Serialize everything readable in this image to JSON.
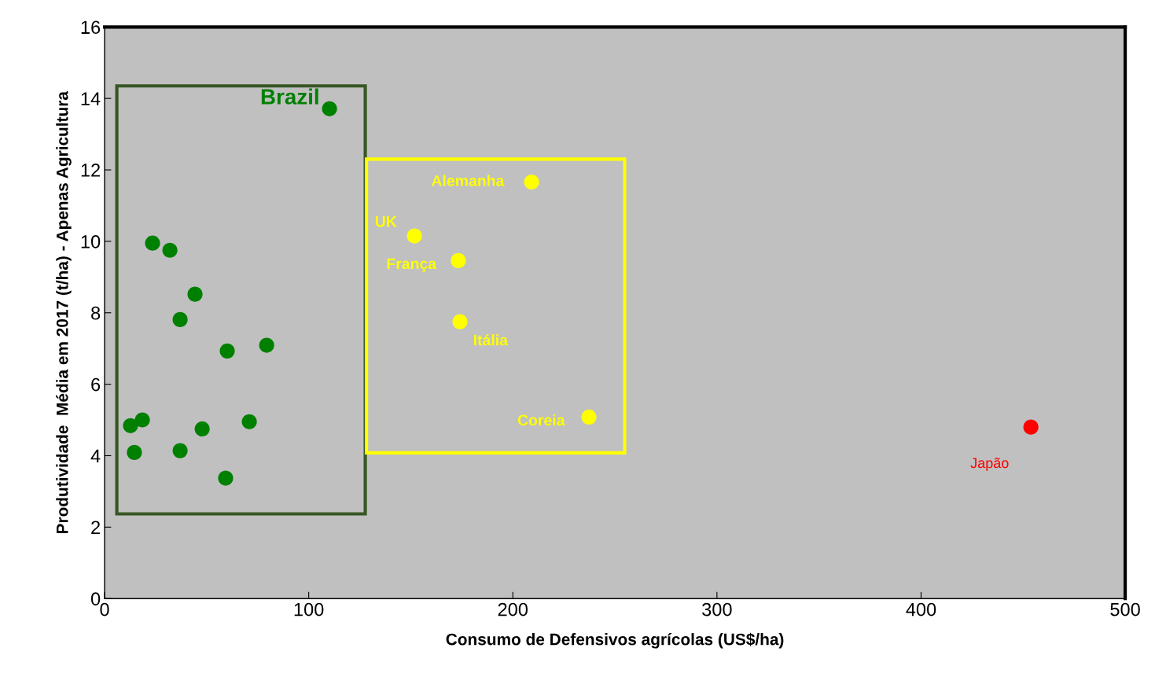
{
  "chart_data": {
    "type": "scatter",
    "xlabel": "Consumo de Defensivos agrícolas (US$/ha)",
    "ylabel": "Produtividade  Média em 2017 (t/ha) - Apenas Agricultura",
    "xlim": [
      0,
      500
    ],
    "ylim": [
      0,
      16
    ],
    "xticks": [
      0,
      100,
      200,
      300,
      400,
      500
    ],
    "yticks": [
      0,
      2,
      4,
      6,
      8,
      10,
      12,
      14,
      16
    ],
    "grid": false,
    "marker": "circle",
    "series": [
      {
        "color": "#008000",
        "x": [
          12.7,
          18.5,
          14.6,
          23.5,
          32,
          44.3,
          37,
          37,
          47.8,
          60.1,
          79.4,
          70.9,
          59.3,
          110.2
        ],
        "values": [
          4.84,
          5.0,
          4.09,
          9.95,
          9.75,
          8.52,
          7.81,
          4.14,
          4.75,
          6.93,
          7.09,
          4.95,
          3.37,
          13.71
        ]
      },
      {
        "color": "#ffff00",
        "x": [
          209.2,
          151.8,
          173.3,
          174.1,
          237.3
        ],
        "values": [
          11.66,
          10.15,
          9.46,
          7.75,
          5.08
        ]
      },
      {
        "color": "#ff0000",
        "x": [
          453.8
        ],
        "values": [
          4.8
        ]
      }
    ],
    "annotations": [
      {
        "text": "Brazil",
        "x": 110.2,
        "y": 13.71
      },
      {
        "text": "Alemanha",
        "x": 209.2,
        "y": 11.66
      },
      {
        "text": "UK",
        "x": 151.8,
        "y": 10.15
      },
      {
        "text": "França",
        "x": 173.3,
        "y": 9.46
      },
      {
        "text": "Itália",
        "x": 174.1,
        "y": 7.75
      },
      {
        "text": "Coreia",
        "x": 237.3,
        "y": 5.08
      },
      {
        "text": "Japão",
        "x": 453.8,
        "y": 4.8
      }
    ]
  }
}
